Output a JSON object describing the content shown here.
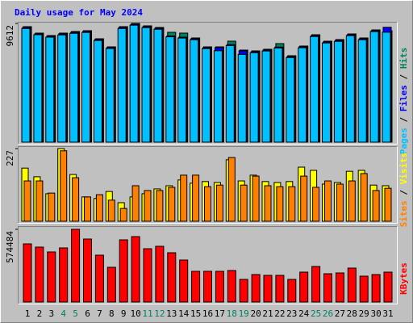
{
  "legend_separator": " / ",
  "weekend_color": "#008060",
  "weekend_indices": [
    3,
    4,
    10,
    11,
    17,
    18,
    24,
    25
  ],
  "chart_data": [
    {
      "type": "bar",
      "title": "Daily usage for May 2024",
      "ylim": [
        0,
        9612
      ],
      "yticks": [
        9612
      ],
      "series": [
        {
          "name": "Hits",
          "color": "#00805c",
          "values": [
            9351,
            8828,
            8631,
            8828,
            8958,
            9024,
            8370,
            7716,
            9351,
            9612,
            9416,
            9285,
            8893,
            8828,
            8435,
            7716,
            7716,
            8174,
            7454,
            7389,
            7520,
            7978,
            6997,
            7781,
            8697,
            8174,
            8305,
            8762,
            8435,
            9089,
            9024
          ]
        },
        {
          "name": "Files",
          "color": "#0000ff",
          "values": [
            9290,
            8760,
            8570,
            8760,
            8890,
            8960,
            8310,
            7660,
            9290,
            9550,
            9350,
            9220,
            8600,
            8500,
            8370,
            7650,
            7650,
            7900,
            7390,
            7320,
            7460,
            7700,
            6930,
            7720,
            8630,
            8110,
            8240,
            8700,
            8370,
            9030,
            9300
          ]
        },
        {
          "name": "Pages",
          "color": "#00c0ff",
          "values": [
            9200,
            8700,
            8500,
            8680,
            8810,
            8880,
            8230,
            7580,
            9200,
            9470,
            9270,
            9140,
            8530,
            8430,
            8290,
            7570,
            7400,
            7820,
            7100,
            7240,
            7380,
            7620,
            6850,
            7640,
            8550,
            8030,
            8160,
            8620,
            8290,
            8950,
            8900
          ]
        }
      ]
    },
    {
      "type": "bar",
      "ylim": [
        0,
        227
      ],
      "yticks": [
        227
      ],
      "series": [
        {
          "name": "Visits",
          "color": "#ffff00",
          "values": [
            166,
            139,
            86,
            227,
            146,
            76,
            71,
            93,
            58,
            76,
            86,
            101,
            111,
            129,
            119,
            124,
            121,
            192,
            126,
            144,
            124,
            121,
            124,
            169,
            159,
            116,
            121,
            156,
            159,
            113,
            111
          ]
        },
        {
          "name": "Sites",
          "color": "#ff8000",
          "values": [
            126,
            126,
            88,
            220,
            136,
            76,
            83,
            66,
            40,
            111,
            96,
            96,
            106,
            144,
            144,
            108,
            113,
            199,
            113,
            141,
            111,
            108,
            108,
            141,
            106,
            126,
            116,
            126,
            149,
            96,
            103
          ]
        }
      ]
    },
    {
      "type": "bar",
      "ylim": [
        0,
        574484
      ],
      "yticks": [
        574484
      ],
      "categories": [
        "1",
        "2",
        "3",
        "4",
        "5",
        "6",
        "7",
        "8",
        "9",
        "10",
        "11",
        "12",
        "13",
        "14",
        "15",
        "16",
        "17",
        "18",
        "19",
        "20",
        "21",
        "22",
        "23",
        "24",
        "25",
        "26",
        "27",
        "28",
        "29",
        "30",
        "31"
      ],
      "series": [
        {
          "name": "KBytes",
          "color": "#ff0000",
          "values": [
            459576,
            434044,
            395746,
            427661,
            574484,
            497874,
            370214,
            274469,
            491491,
            517023,
            421278,
            440427,
            389363,
            331916,
            242554,
            242554,
            242554,
            248937,
            178724,
            217022,
            210639,
            210639,
            178724,
            236171,
            280852,
            223405,
            229788,
            268086,
            204256,
            217022,
            236171
          ]
        }
      ]
    }
  ]
}
